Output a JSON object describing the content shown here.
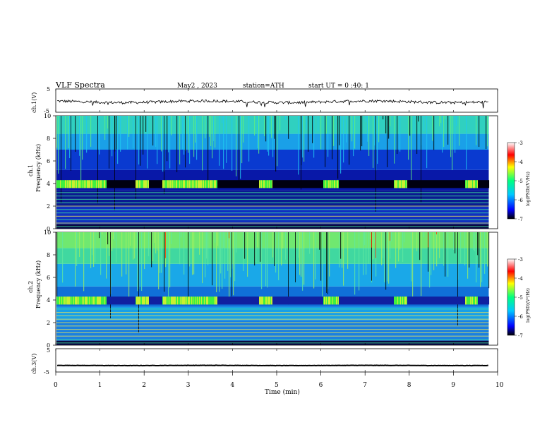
{
  "header": {
    "title": "VLF Spectra",
    "date": "May2  , 2023",
    "station": "station=ATH",
    "start": "start  UT  =   0  :40: 1"
  },
  "chart_data": [
    {
      "type": "line",
      "panel": "ch1_timeseries",
      "ylabel": "ch.1(V)",
      "ylim": [
        -5,
        5
      ],
      "yticks": [
        "5",
        "-5"
      ],
      "x_range_min": [
        0,
        9.8
      ],
      "description_values": "noisy trace around -0.5 V, amplitude ~1 V",
      "mean_v": -0.5
    },
    {
      "type": "heatmap",
      "panel": "ch1_spectrogram",
      "ylabel": "ch.1\nFrequency  (kHz)",
      "ylim": [
        0,
        10
      ],
      "yticks": [
        "0",
        "2",
        "4",
        "6",
        "8",
        "10"
      ],
      "x_range_min": [
        0,
        9.8
      ],
      "colorbar": {
        "label": "log(PSD)(V²/Hz)",
        "range": [
          -7,
          -3
        ],
        "ticks": [
          "-3",
          "-4",
          "-5",
          "-6",
          "-7"
        ],
        "colors": [
          "#000000",
          "#0000ff",
          "#00c8ff",
          "#00ff80",
          "#ffff00",
          "#ff0000",
          "#ffffff"
        ]
      },
      "signal_bursts_min": [
        [
          0,
          1.15
        ],
        [
          1.8,
          2.1
        ],
        [
          2.4,
          3.65
        ],
        [
          4.6,
          4.9
        ],
        [
          6.05,
          6.4
        ],
        [
          7.65,
          7.95
        ],
        [
          9.25,
          9.55
        ]
      ],
      "burst_band_khz": [
        3.6,
        4.3
      ],
      "band_lines_khz": [
        0.3,
        0.6,
        0.9,
        1.2,
        1.6,
        2.0,
        2.3,
        2.6,
        3.0
      ]
    },
    {
      "type": "heatmap",
      "panel": "ch2_spectrogram",
      "ylabel": "ch.2\nFrequency  (kHz)",
      "ylim": [
        0,
        10
      ],
      "yticks": [
        "0",
        "2",
        "4",
        "6",
        "8",
        "10"
      ],
      "x_range_min": [
        0,
        9.8
      ],
      "colorbar": {
        "label": "log(PSD)(V²/Hz)",
        "range": [
          -7,
          -3
        ],
        "ticks": [
          "-3",
          "-4",
          "-5",
          "-6",
          "-7"
        ]
      },
      "signal_bursts_min": [
        [
          0,
          1.15
        ],
        [
          1.8,
          2.1
        ],
        [
          2.4,
          3.65
        ],
        [
          4.6,
          4.9
        ],
        [
          6.05,
          6.4
        ],
        [
          7.65,
          7.95
        ],
        [
          9.25,
          9.55
        ]
      ],
      "burst_band_khz": [
        3.6,
        4.3
      ]
    },
    {
      "type": "line",
      "panel": "ch3_timeseries",
      "ylabel": "ch.3(V)",
      "ylim": [
        -5,
        5
      ],
      "yticks": [
        "5",
        "-5"
      ],
      "x_range_min": [
        0,
        9.8
      ],
      "mean_v": -2.2
    }
  ],
  "xaxis": {
    "label": "Time  (min)",
    "ticks": [
      "0",
      "1",
      "2",
      "3",
      "4",
      "5",
      "6",
      "7",
      "8",
      "9",
      "10"
    ],
    "xlim": [
      0,
      10
    ]
  }
}
